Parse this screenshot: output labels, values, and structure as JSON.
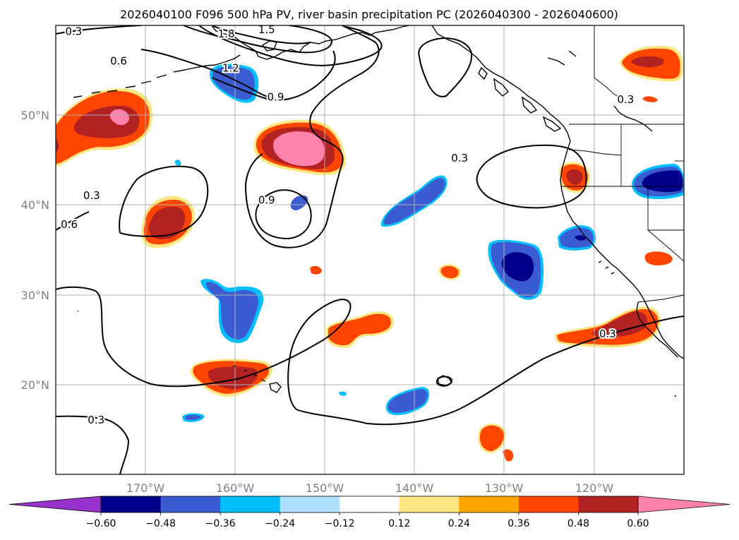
{
  "chart_data": {
    "type": "filled-contour-map",
    "title": "2026040100 F096 500 hPa PV, river basin precipitation PC (2026040300 - 2026040600)",
    "map": {
      "lon_range": [
        -180,
        -110
      ],
      "lat_range": [
        10,
        60
      ],
      "lon_ticks": [
        -170,
        -160,
        -150,
        -140,
        -130,
        -120
      ],
      "lon_tick_labels": [
        "170°W",
        "160°W",
        "150°W",
        "140°W",
        "130°W",
        "120°W"
      ],
      "lat_ticks": [
        20,
        30,
        40,
        50
      ],
      "lat_tick_labels": [
        "20°N",
        "30°N",
        "40°N",
        "50°N"
      ],
      "gridlines": true
    },
    "colorbar": {
      "levels": [
        -0.6,
        -0.48,
        -0.36,
        -0.24,
        -0.12,
        0.12,
        0.24,
        0.36,
        0.48,
        0.6
      ],
      "tick_labels": [
        "−0.60",
        "−0.48",
        "−0.36",
        "−0.24",
        "−0.12",
        "0.12",
        "0.24",
        "0.36",
        "0.48",
        "0.60"
      ],
      "colors": [
        "#9932cc",
        "#00008b",
        "#3b5bd1",
        "#00bfff",
        "#b0e2ff",
        "#ffffff",
        "#ffe680",
        "#ffa500",
        "#ff4500",
        "#b22222",
        "#ff82ab"
      ],
      "extend": "both"
    },
    "contour_labels": [
      {
        "text": "0.3",
        "lon": -178.0,
        "lat": 59.3
      },
      {
        "text": "1.8",
        "lon": -161.0,
        "lat": 59.0
      },
      {
        "text": "1.5",
        "lon": -156.5,
        "lat": 59.5
      },
      {
        "text": "0.6",
        "lon": -173.0,
        "lat": 56.0
      },
      {
        "text": "1.2",
        "lon": -160.5,
        "lat": 55.2
      },
      {
        "text": "0.9",
        "lon": -155.5,
        "lat": 52.0
      },
      {
        "text": "0.9",
        "lon": -156.5,
        "lat": 40.5
      },
      {
        "text": "0.3",
        "lon": -176.0,
        "lat": 41.0
      },
      {
        "text": "0.6",
        "lon": -178.5,
        "lat": 37.8
      },
      {
        "text": "0.3",
        "lon": -135.0,
        "lat": 45.2
      },
      {
        "text": "0.3",
        "lon": -116.5,
        "lat": 51.7
      },
      {
        "text": "0.3",
        "lon": -118.5,
        "lat": 25.6
      },
      {
        "text": "0.3",
        "lon": -175.5,
        "lat": 16.0
      }
    ]
  }
}
